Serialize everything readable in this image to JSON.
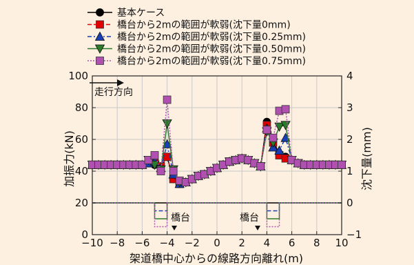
{
  "chart_data": {
    "type": "line",
    "xlabel": "架道橋中心からの線路方向離れ(m)",
    "ylabel": "加振力(kN)",
    "y2label": "沈下量(mm)",
    "xlim": [
      -10,
      10
    ],
    "ylim": [
      0,
      100
    ],
    "y2lim": [
      -1,
      4
    ],
    "xticks": [
      "−10",
      "−8",
      "−6",
      "−4",
      "−2",
      "0",
      "2",
      "4",
      "6",
      "8",
      "10"
    ],
    "yticks": [
      "0",
      "20",
      "40",
      "60",
      "80",
      "100"
    ],
    "y2ticks": [
      "−1",
      "0",
      "1",
      "2",
      "3",
      "4"
    ],
    "legend_position": "top-left",
    "annotations": {
      "direction_label": "走行方向",
      "abutment_left": "橋台",
      "abutment_right": "橋台"
    },
    "x": [
      -10,
      -9.5,
      -9,
      -8.5,
      -8,
      -7.5,
      -7,
      -6.5,
      -6,
      -5.5,
      -5,
      -4.5,
      -4,
      -3.5,
      -3,
      -2.5,
      -2,
      -1.5,
      -1,
      -0.5,
      0,
      0.5,
      1,
      1.5,
      2,
      2.5,
      3,
      3.5,
      4,
      4.5,
      5,
      5.5,
      6,
      6.5,
      7,
      7.5,
      8,
      8.5,
      9,
      9.5,
      10
    ],
    "series": [
      {
        "name": "基本ケース",
        "color": "#000000",
        "marker": "circle",
        "dash": "solid",
        "values": [
          44,
          44,
          44,
          44,
          44,
          44,
          44,
          44,
          44,
          45,
          44,
          43,
          49,
          35,
          32,
          33,
          35,
          37,
          38,
          40,
          42,
          44,
          46,
          47,
          48,
          47,
          45,
          43,
          71,
          60,
          50,
          49,
          47,
          45,
          44,
          44,
          44,
          44,
          44,
          44,
          44
        ]
      },
      {
        "name": "橋台から2mの範囲が軟弱(沈下量0mm)",
        "color": "#e00000",
        "marker": "square",
        "dash": "dashed",
        "values": [
          44,
          44,
          44,
          44,
          44,
          44,
          44,
          44,
          44,
          45,
          45,
          43,
          49,
          35,
          32,
          33,
          35,
          37,
          38,
          40,
          42,
          44,
          46,
          47,
          48,
          47,
          45,
          43,
          69,
          58,
          50,
          48,
          47,
          45,
          44,
          44,
          44,
          44,
          44,
          44,
          44
        ]
      },
      {
        "name": "橋台から2mの範囲が軟弱(沈下量0.25mm)",
        "color": "#1a3fb5",
        "marker": "triangle-up",
        "dash": "dashdot",
        "values": [
          44,
          44,
          44,
          44,
          44,
          44,
          44,
          44,
          44,
          45,
          46,
          42,
          57,
          38,
          32,
          33,
          35,
          37,
          38,
          40,
          42,
          44,
          46,
          47,
          48,
          47,
          45,
          43,
          67,
          55,
          53,
          61,
          47,
          45,
          44,
          44,
          44,
          44,
          44,
          44,
          44
        ]
      },
      {
        "name": "橋台から2mの範囲が軟弱(沈下量0.50mm)",
        "color": "#2c7a2c",
        "marker": "triangle-down",
        "dash": "solid",
        "values": [
          44,
          44,
          44,
          44,
          44,
          44,
          44,
          44,
          44,
          47,
          44,
          41,
          70,
          41,
          33,
          33,
          35,
          37,
          38,
          40,
          42,
          44,
          46,
          47,
          48,
          47,
          45,
          43,
          65,
          58,
          68,
          69,
          47,
          45,
          44,
          44,
          44,
          44,
          44,
          44,
          44
        ]
      },
      {
        "name": "橋台から2mの範囲が軟弱(沈下量0.75mm)",
        "color": "#b050b0",
        "marker": "square",
        "dash": "dotted",
        "values": [
          44,
          44,
          44,
          44,
          44,
          44,
          44,
          44,
          44,
          47,
          50,
          40,
          85,
          40,
          34,
          33,
          35,
          37,
          38,
          40,
          42,
          44,
          46,
          47,
          48,
          47,
          45,
          43,
          66,
          61,
          78,
          79,
          47,
          45,
          44,
          44,
          44,
          44,
          44,
          44,
          44
        ]
      }
    ],
    "settlement": {
      "x": [
        -10,
        -5,
        -5,
        -4,
        -4,
        4,
        4,
        5,
        5,
        10
      ],
      "series": [
        {
          "color": "#000000",
          "dash": "solid",
          "values": [
            0,
            0,
            -0.0,
            -0.0,
            0,
            0,
            -0.0,
            -0.0,
            0,
            0
          ]
        },
        {
          "color": "#1a3fb5",
          "dash": "dashed",
          "values": [
            0,
            0,
            -0.25,
            -0.25,
            0,
            0,
            -0.25,
            -0.25,
            0,
            0
          ]
        },
        {
          "color": "#2c7a2c",
          "dash": "solid",
          "values": [
            0,
            0,
            -0.5,
            -0.5,
            0,
            0,
            -0.5,
            -0.5,
            0,
            0
          ]
        },
        {
          "color": "#b050b0",
          "dash": "dotted",
          "values": [
            0,
            0,
            -0.75,
            -0.75,
            0,
            0,
            -0.75,
            -0.75,
            0,
            0
          ]
        }
      ]
    }
  }
}
